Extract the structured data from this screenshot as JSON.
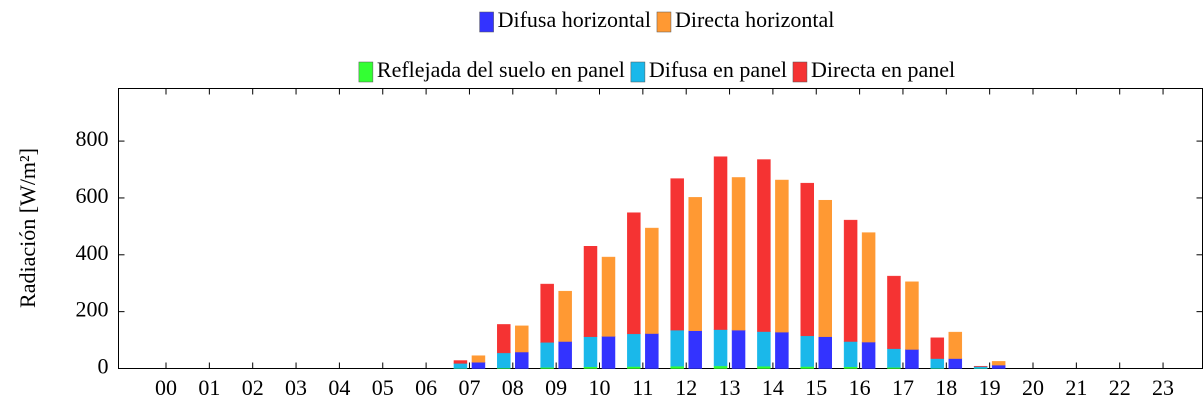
{
  "chart_data": {
    "type": "stacked-bar",
    "categories": [
      "00",
      "01",
      "02",
      "03",
      "04",
      "05",
      "06",
      "07",
      "08",
      "09",
      "10",
      "11",
      "12",
      "13",
      "14",
      "15",
      "16",
      "17",
      "18",
      "19",
      "20",
      "21",
      "22",
      "23"
    ],
    "y_label": "Radiación [W/m²]",
    "ylim": [
      0,
      985
    ],
    "yticks": [
      0,
      200,
      400,
      600,
      800
    ],
    "series": [
      {
        "name": "Difusa horizontal",
        "color": "#3333ff",
        "stack": "horizontal",
        "values": [
          0,
          0,
          0,
          0,
          0,
          0,
          0,
          22,
          58,
          95,
          113,
          123,
          133,
          135,
          128,
          112,
          93,
          67,
          35,
          12,
          0,
          0,
          0,
          0
        ]
      },
      {
        "name": "Directa horizontal",
        "color": "#ff9933",
        "stack": "horizontal",
        "values": [
          0,
          0,
          0,
          0,
          0,
          0,
          0,
          23,
          92,
          177,
          279,
          371,
          469,
          537,
          535,
          480,
          385,
          238,
          93,
          13,
          0,
          0,
          0,
          0
        ]
      },
      {
        "name": "Reflejada del suelo en panel",
        "color": "#33ff33",
        "stack": "panel",
        "values": [
          0,
          0,
          0,
          0,
          0,
          0,
          0,
          0.5,
          2,
          4,
          6,
          7,
          8,
          9,
          8,
          7,
          6,
          4,
          1,
          0.3,
          0,
          0,
          0,
          0
        ]
      },
      {
        "name": "Difusa en panel",
        "color": "#1ab8ea",
        "stack": "panel",
        "values": [
          0,
          0,
          0,
          0,
          0,
          0,
          0,
          17.5,
          53,
          88,
          106,
          115,
          127,
          128,
          122,
          108,
          89,
          66,
          34,
          6.7,
          0,
          0,
          0,
          0
        ]
      },
      {
        "name": "Directa en panel",
        "color": "#f53333",
        "stack": "panel",
        "values": [
          0,
          0,
          0,
          0,
          0,
          0,
          0,
          10,
          100,
          205,
          318,
          426,
          533,
          608,
          605,
          537,
          427,
          255,
          73,
          1,
          0,
          0,
          0,
          0
        ]
      }
    ]
  }
}
